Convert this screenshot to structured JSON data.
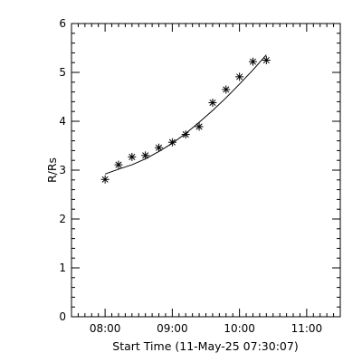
{
  "chart_data": {
    "type": "scatter",
    "title": "",
    "xlabel": "Start Time (11-May-25 07:30:07)",
    "ylabel": "R/Rs",
    "xlim": [
      "07:30",
      "11:30"
    ],
    "ylim": [
      0,
      6
    ],
    "grid": false,
    "x_ticks": [
      "08:00",
      "09:00",
      "10:00",
      "11:00"
    ],
    "y_ticks": [
      0,
      1,
      2,
      3,
      4,
      5,
      6
    ],
    "series": [
      {
        "marker": "asterisk",
        "x": [
          "08:00",
          "08:12",
          "08:24",
          "08:36",
          "08:48",
          "09:00",
          "09:12",
          "09:24",
          "09:36",
          "09:48",
          "10:00",
          "10:12",
          "10:24"
        ],
        "y": [
          2.81,
          3.11,
          3.27,
          3.3,
          3.46,
          3.57,
          3.73,
          3.89,
          4.38,
          4.65,
          4.91,
          5.22,
          5.25
        ]
      }
    ],
    "fit": {
      "style": "line",
      "x": [
        "08:00",
        "08:12",
        "08:24",
        "08:36",
        "08:48",
        "09:00",
        "09:12",
        "09:24",
        "09:36",
        "09:48",
        "10:00",
        "10:12",
        "10:24"
      ],
      "y": [
        2.92,
        3.02,
        3.11,
        3.23,
        3.38,
        3.55,
        3.75,
        3.98,
        4.22,
        4.48,
        4.76,
        5.05,
        5.36
      ]
    }
  }
}
